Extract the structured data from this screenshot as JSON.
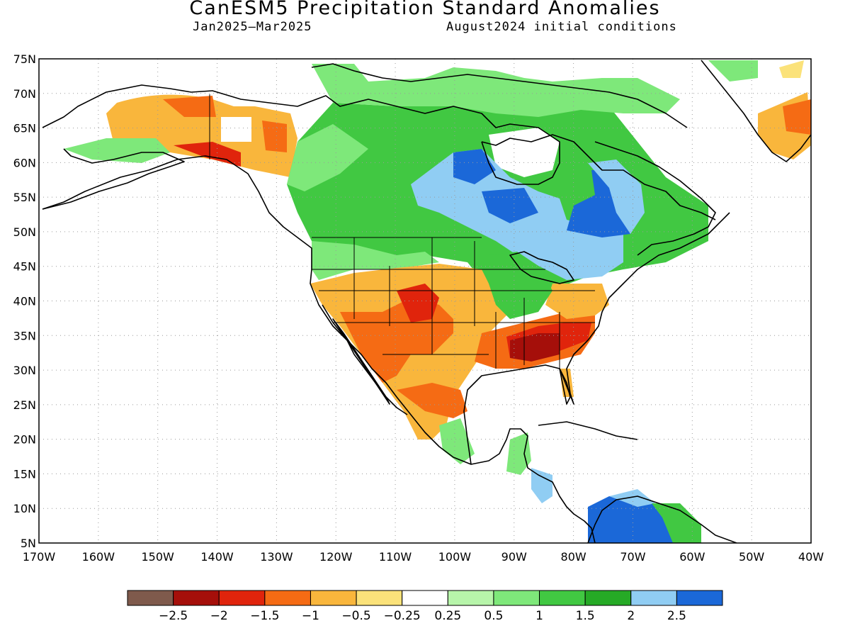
{
  "title": "CanESM5 Precipitation Standard Anomalies",
  "period": "Jan2025–Mar2025",
  "init": "August2024 initial conditions",
  "lat_labels": [
    "75N",
    "70N",
    "65N",
    "60N",
    "55N",
    "50N",
    "45N",
    "40N",
    "35N",
    "30N",
    "25N",
    "20N",
    "15N",
    "10N",
    "5N"
  ],
  "lon_labels": [
    "170W",
    "160W",
    "150W",
    "140W",
    "130W",
    "120W",
    "110W",
    "100W",
    "90W",
    "80W",
    "70W",
    "60W",
    "50W",
    "40W"
  ],
  "legend": {
    "colors": [
      "#7f5a4c",
      "#a50f0a",
      "#e0240c",
      "#f56b14",
      "#f9b63c",
      "#fbe27a",
      "#ffffff",
      "#b7f5aa",
      "#7ee87a",
      "#41c842",
      "#26aa26",
      "#90cdf3",
      "#1b68d8"
    ],
    "labels": [
      "−2.5",
      "−2",
      "−1.5",
      "−1",
      "−0.5",
      "−0.25",
      "0.25",
      "0.5",
      "1",
      "1.5",
      "2",
      "2.5"
    ]
  }
}
